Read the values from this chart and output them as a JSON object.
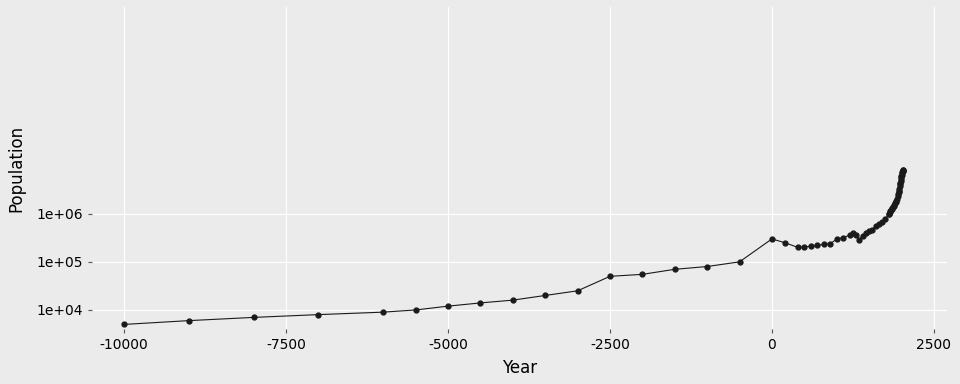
{
  "title": "",
  "xlabel": "Year",
  "ylabel": "Population",
  "background_color": "#EBEBEB",
  "grid_color": "#FFFFFF",
  "line_color": "#1a1a1a",
  "point_color": "#1a1a1a",
  "point_marker": "o",
  "point_size": 3.5,
  "line_width": 0.8,
  "xlim": [
    -10500,
    2700
  ],
  "ylim": [
    4000,
    20000000000
  ],
  "yticks": [
    10000,
    100000,
    1000000
  ],
  "ytick_labels": [
    "1e+04",
    "1e+05",
    "1e+06"
  ],
  "xticks": [
    -10000,
    -7500,
    -5000,
    -2500,
    0,
    2500
  ],
  "data": [
    [
      -10000,
      5000
    ],
    [
      -9000,
      6000
    ],
    [
      -8000,
      7000
    ],
    [
      -7000,
      8000
    ],
    [
      -6000,
      9000
    ],
    [
      -5500,
      10000
    ],
    [
      -5000,
      12000
    ],
    [
      -4500,
      14000
    ],
    [
      -4000,
      16000
    ],
    [
      -3500,
      20000
    ],
    [
      -3000,
      25000
    ],
    [
      -2500,
      50000
    ],
    [
      -2000,
      55000
    ],
    [
      -1500,
      70000
    ],
    [
      -1000,
      80000
    ],
    [
      -500,
      100000
    ],
    [
      0,
      300000
    ],
    [
      200,
      250000
    ],
    [
      400,
      200000
    ],
    [
      500,
      205000
    ],
    [
      600,
      210000
    ],
    [
      700,
      220000
    ],
    [
      800,
      230000
    ],
    [
      900,
      240000
    ],
    [
      1000,
      295000
    ],
    [
      1100,
      320000
    ],
    [
      1200,
      360000
    ],
    [
      1250,
      400000
    ],
    [
      1300,
      360000
    ],
    [
      1340,
      280000
    ],
    [
      1400,
      350000
    ],
    [
      1450,
      400000
    ],
    [
      1500,
      438000
    ],
    [
      1550,
      470000
    ],
    [
      1600,
      556000
    ],
    [
      1650,
      606000
    ],
    [
      1700,
      679000
    ],
    [
      1750,
      770000
    ],
    [
      1800,
      978000
    ],
    [
      1810,
      1010000
    ],
    [
      1820,
      1070000
    ],
    [
      1830,
      1130000
    ],
    [
      1840,
      1200000
    ],
    [
      1850,
      1260000
    ],
    [
      1860,
      1300000
    ],
    [
      1870,
      1370000
    ],
    [
      1880,
      1450000
    ],
    [
      1890,
      1530000
    ],
    [
      1900,
      1650000
    ],
    [
      1910,
      1750000
    ],
    [
      1920,
      1860000
    ],
    [
      1930,
      2070000
    ],
    [
      1940,
      2300000
    ],
    [
      1950,
      2520000
    ],
    [
      1955,
      2770000
    ],
    [
      1960,
      3020000
    ],
    [
      1965,
      3340000
    ],
    [
      1970,
      3700000
    ],
    [
      1975,
      4080000
    ],
    [
      1980,
      4430000
    ],
    [
      1985,
      4850000
    ],
    [
      1990,
      5320000
    ],
    [
      1995,
      5720000
    ],
    [
      2000,
      6100000
    ],
    [
      2005,
      6500000
    ],
    [
      2010,
      6900000
    ],
    [
      2015,
      7380000
    ],
    [
      2020,
      7800000
    ],
    [
      2021,
      7900000
    ],
    [
      2022,
      7950000
    ],
    [
      2023,
      8000000
    ]
  ]
}
